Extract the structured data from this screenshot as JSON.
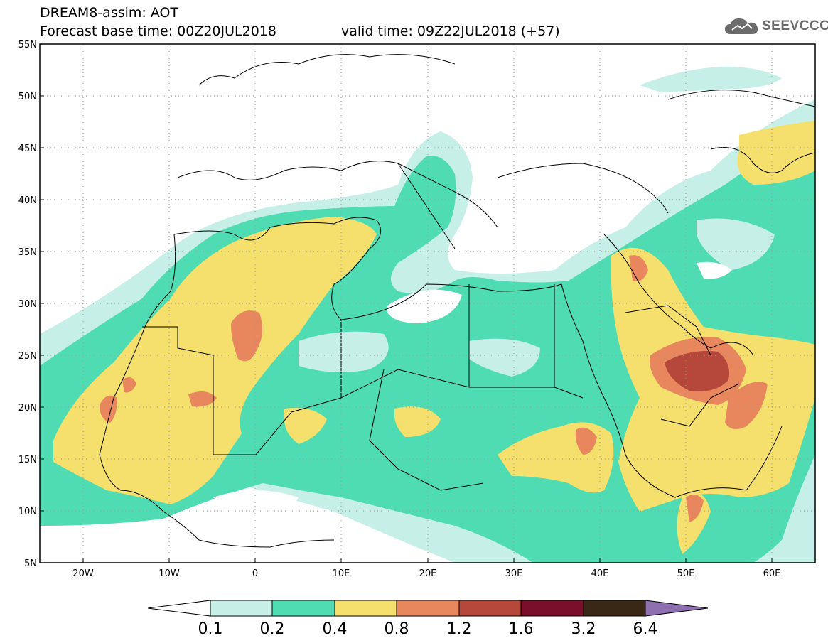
{
  "header": {
    "title": "DREAM8-assim: AOT",
    "base_time": "Forecast base time: 00Z20JUL2018",
    "valid_time": "valid time: 09Z22JUL2018 (+57)"
  },
  "logo": {
    "text": "SEEVCCC",
    "icon": "cloud-icon"
  },
  "axes": {
    "lat_labels": [
      "55N",
      "50N",
      "45N",
      "40N",
      "35N",
      "30N",
      "25N",
      "20N",
      "15N",
      "10N",
      "5N"
    ],
    "lon_labels": [
      "20W",
      "10W",
      "0",
      "10E",
      "20E",
      "30E",
      "40E",
      "50E",
      "60E"
    ]
  },
  "colorbar": {
    "levels": [
      "0.1",
      "0.2",
      "0.4",
      "0.8",
      "1.2",
      "1.6",
      "3.2",
      "6.4"
    ],
    "colors": [
      "#ffffff",
      "#c6efe8",
      "#4fdcb2",
      "#f5e06e",
      "#e8875e",
      "#b5483a",
      "#7a0f2a",
      "#3a2817",
      "#8e6fb0"
    ]
  },
  "palette": {
    "c01": "#c6efe8",
    "c02": "#4fdcb2",
    "c04": "#f5e06e",
    "c08": "#e8875e",
    "c12": "#b5483a"
  }
}
